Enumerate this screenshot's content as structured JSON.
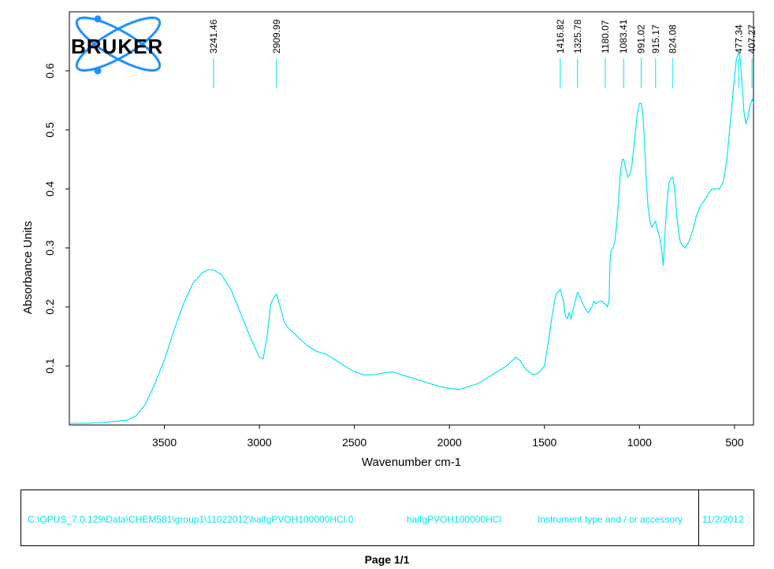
{
  "brand": {
    "logo_text": "BRUKER",
    "logo_icon": "atom-orbit-icon",
    "orbit_color": "#1e90ff"
  },
  "chart_data": {
    "type": "line",
    "title": "",
    "xlabel": "Wavenumber cm-1",
    "ylabel": "Absorbance Units",
    "xlim": [
      4000,
      400
    ],
    "x_reversed": true,
    "ylim": [
      0.0,
      0.7
    ],
    "x_ticks": [
      3500,
      3000,
      2500,
      2000,
      1500,
      1000,
      500
    ],
    "y_ticks": [
      0.1,
      0.2,
      0.3,
      0.4,
      0.5,
      0.6
    ],
    "y_tick_labels": [
      "0.1",
      "0.2",
      "0.3",
      "0.4",
      "0.5",
      "0.6"
    ],
    "grid": false,
    "line_color": "#00e5ee",
    "series": [
      {
        "x": [
          3995,
          3900,
          3800,
          3700,
          3650,
          3600,
          3550,
          3500,
          3450,
          3400,
          3350,
          3300,
          3270,
          3241.46,
          3200,
          3150,
          3100,
          3050,
          3000,
          2980,
          2960,
          2940,
          2920,
          2909.99,
          2890,
          2870,
          2850,
          2800,
          2750,
          2700,
          2650,
          2600,
          2550,
          2500,
          2450,
          2400,
          2350,
          2300,
          2250,
          2200,
          2150,
          2100,
          2050,
          2000,
          1950,
          1900,
          1850,
          1800,
          1750,
          1700,
          1650,
          1630,
          1600,
          1560,
          1530,
          1500,
          1480,
          1460,
          1440,
          1416.82,
          1400,
          1390,
          1380,
          1370,
          1360,
          1350,
          1325.78,
          1310,
          1290,
          1270,
          1250,
          1240,
          1230,
          1220,
          1200,
          1180.07,
          1170,
          1160,
          1155,
          1150,
          1140,
          1130,
          1120,
          1110,
          1100,
          1090,
          1083.41,
          1070,
          1060,
          1050,
          1040,
          1030,
          1020,
          1010,
          1000,
          991.02,
          985,
          975,
          965,
          955,
          945,
          935,
          925,
          915.17,
          905,
          895,
          885,
          875,
          865,
          855,
          845,
          835,
          824.08,
          815,
          805,
          795,
          785,
          775,
          760,
          740,
          720,
          700,
          680,
          660,
          640,
          620,
          600,
          580,
          560,
          540,
          520,
          500,
          490,
          477.34,
          470,
          460,
          450,
          440,
          430,
          420,
          407.27,
          400
        ],
        "y": [
          0.003,
          0.003,
          0.005,
          0.008,
          0.015,
          0.035,
          0.07,
          0.11,
          0.16,
          0.205,
          0.24,
          0.258,
          0.263,
          0.263,
          0.255,
          0.23,
          0.19,
          0.15,
          0.115,
          0.112,
          0.15,
          0.205,
          0.218,
          0.222,
          0.2,
          0.175,
          0.165,
          0.15,
          0.135,
          0.125,
          0.12,
          0.11,
          0.1,
          0.09,
          0.085,
          0.085,
          0.088,
          0.09,
          0.085,
          0.08,
          0.075,
          0.07,
          0.065,
          0.062,
          0.06,
          0.065,
          0.07,
          0.08,
          0.09,
          0.1,
          0.115,
          0.11,
          0.095,
          0.085,
          0.088,
          0.1,
          0.14,
          0.185,
          0.22,
          0.23,
          0.21,
          0.185,
          0.18,
          0.19,
          0.18,
          0.195,
          0.225,
          0.215,
          0.2,
          0.19,
          0.2,
          0.21,
          0.205,
          0.208,
          0.21,
          0.205,
          0.2,
          0.21,
          0.28,
          0.295,
          0.3,
          0.31,
          0.34,
          0.38,
          0.43,
          0.45,
          0.45,
          0.43,
          0.42,
          0.425,
          0.44,
          0.47,
          0.5,
          0.53,
          0.545,
          0.545,
          0.535,
          0.49,
          0.42,
          0.37,
          0.345,
          0.335,
          0.34,
          0.345,
          0.33,
          0.32,
          0.3,
          0.27,
          0.33,
          0.38,
          0.41,
          0.418,
          0.42,
          0.4,
          0.36,
          0.33,
          0.31,
          0.305,
          0.3,
          0.31,
          0.33,
          0.355,
          0.37,
          0.38,
          0.39,
          0.4,
          0.4,
          0.4,
          0.41,
          0.45,
          0.52,
          0.59,
          0.62,
          0.632,
          0.62,
          0.58,
          0.53,
          0.51,
          0.52,
          0.54,
          0.552,
          0.545
        ]
      }
    ],
    "peak_labels": [
      "3241.46",
      "2909.99",
      "1416.82",
      "1325.78",
      "1180.07",
      "1083.41",
      "991.02",
      "915.17",
      "824.08",
      "477.34",
      "407.27"
    ],
    "peak_positions": [
      3241.46,
      2909.99,
      1416.82,
      1325.78,
      1180.07,
      1083.41,
      991.02,
      915.17,
      824.08,
      477.34,
      407.27
    ]
  },
  "info_box": {
    "file_path": "C:\\OPUS_7.0.129\\Data\\CHEM581\\group1\\11022012\\halfgPVOH100000HCl.0",
    "sample_name": "halfgPVOH100000HCl",
    "instrument": "Instrument type and / or accessory",
    "date": "11/2/2012",
    "text_color": "#00e5ee"
  },
  "footer": {
    "page_label": "Page 1/1"
  }
}
